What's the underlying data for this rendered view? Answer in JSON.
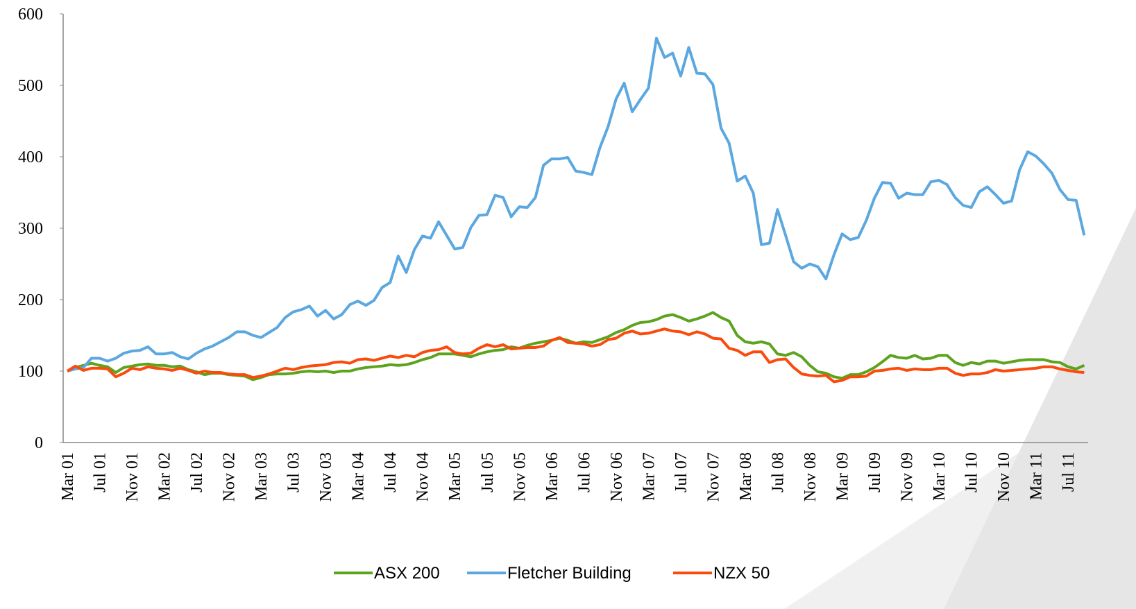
{
  "chart_data": {
    "type": "line",
    "categories": [
      "Mar 01",
      null,
      null,
      null,
      "Jul 01",
      null,
      null,
      null,
      "Nov 01",
      null,
      null,
      null,
      "Mar 02",
      null,
      null,
      null,
      "Jul 02",
      null,
      null,
      null,
      "Nov 02",
      null,
      null,
      null,
      "Mar 03",
      null,
      null,
      null,
      "Jul 03",
      null,
      null,
      null,
      "Nov 03",
      null,
      null,
      null,
      "Mar 04",
      null,
      null,
      null,
      "Jul 04",
      null,
      null,
      null,
      "Nov 04",
      null,
      null,
      null,
      "Mar 05",
      null,
      null,
      null,
      "Jul 05",
      null,
      null,
      null,
      "Nov 05",
      null,
      null,
      null,
      "Mar 06",
      null,
      null,
      null,
      "Jul 06",
      null,
      null,
      null,
      "Nov 06",
      null,
      null,
      null,
      "Mar 07",
      null,
      null,
      null,
      "Jul 07",
      null,
      null,
      null,
      "Nov 07",
      null,
      null,
      null,
      "Mar 08",
      null,
      null,
      null,
      "Jul 08",
      null,
      null,
      null,
      "Nov 08",
      null,
      null,
      null,
      "Mar 09",
      null,
      null,
      null,
      "Jul 09",
      null,
      null,
      null,
      "Nov 09",
      null,
      null,
      null,
      "Mar 10",
      null,
      null,
      null,
      "Jul 10",
      null,
      null,
      null,
      "Nov 10",
      null,
      null,
      null,
      "Mar 11",
      null,
      null,
      null,
      "Jul 11",
      null,
      null
    ],
    "series": [
      {
        "name": "ASX 200",
        "color": "#5da31e",
        "values": [
          100,
          105,
          108,
          111,
          108,
          106,
          98,
          105,
          107,
          109,
          110,
          108,
          108,
          106,
          107,
          102,
          99,
          95,
          97,
          97,
          95,
          94,
          93,
          88,
          91,
          95,
          96,
          96,
          97,
          99,
          100,
          99,
          100,
          98,
          100,
          100,
          103,
          105,
          106,
          107,
          109,
          108,
          109,
          112,
          116,
          119,
          124,
          124,
          124,
          122,
          120,
          124,
          127,
          129,
          130,
          134,
          132,
          136,
          139,
          141,
          143,
          146,
          143,
          139,
          141,
          140,
          144,
          148,
          154,
          158,
          164,
          168,
          169,
          172,
          177,
          179,
          175,
          170,
          173,
          177,
          182,
          175,
          170,
          150,
          141,
          139,
          141,
          138,
          124,
          122,
          126,
          120,
          108,
          99,
          97,
          92,
          90,
          95,
          95,
          99,
          105,
          113,
          122,
          119,
          118,
          122,
          117,
          118,
          122,
          122,
          112,
          108,
          112,
          110,
          114,
          114,
          111,
          113,
          115,
          116,
          116,
          116,
          113,
          112,
          106,
          103,
          108
        ]
      },
      {
        "name": "Fletcher Building",
        "color": "#5ba8e0",
        "values": [
          100,
          103,
          105,
          118,
          118,
          114,
          118,
          125,
          128,
          129,
          134,
          124,
          124,
          126,
          120,
          117,
          125,
          131,
          135,
          141,
          147,
          155,
          155,
          150,
          147,
          154,
          161,
          175,
          183,
          186,
          191,
          177,
          185,
          173,
          179,
          193,
          198,
          192,
          199,
          217,
          224,
          261,
          238,
          270,
          289,
          286,
          309,
          290,
          271,
          273,
          301,
          318,
          319,
          346,
          343,
          316,
          330,
          329,
          343,
          388,
          397,
          397,
          399,
          380,
          378,
          375,
          413,
          442,
          481,
          503,
          463,
          480,
          496,
          566,
          539,
          545,
          513,
          553,
          517,
          516,
          501,
          440,
          419,
          366,
          373,
          349,
          277,
          279,
          326,
          290,
          253,
          244,
          250,
          246,
          229,
          263,
          292,
          284,
          287,
          311,
          342,
          364,
          363,
          342,
          349,
          347,
          347,
          365,
          367,
          361,
          343,
          332,
          329,
          351,
          358,
          347,
          335,
          338,
          382,
          407,
          401,
          390,
          377,
          354,
          340,
          339,
          290
        ]
      },
      {
        "name": "NZX 50",
        "color": "#fa4b0c",
        "values": [
          100,
          107,
          101,
          104,
          104,
          103,
          92,
          97,
          104,
          102,
          106,
          104,
          103,
          101,
          104,
          101,
          97,
          100,
          98,
          98,
          96,
          95,
          95,
          91,
          93,
          96,
          100,
          104,
          102,
          105,
          107,
          108,
          109,
          112,
          113,
          111,
          116,
          117,
          115,
          118,
          121,
          119,
          122,
          120,
          126,
          129,
          130,
          134,
          126,
          124,
          125,
          132,
          137,
          134,
          137,
          131,
          132,
          133,
          133,
          135,
          143,
          147,
          140,
          139,
          138,
          135,
          137,
          144,
          146,
          153,
          156,
          152,
          153,
          156,
          159,
          156,
          155,
          151,
          155,
          152,
          146,
          145,
          132,
          129,
          122,
          127,
          127,
          112,
          116,
          117,
          105,
          96,
          94,
          93,
          94,
          85,
          87,
          92,
          92,
          93,
          100,
          101,
          103,
          104,
          101,
          103,
          102,
          102,
          104,
          104,
          97,
          94,
          96,
          96,
          98,
          102,
          100,
          101,
          102,
          103,
          104,
          106,
          106,
          103,
          101,
          99,
          98
        ]
      }
    ],
    "ylim": [
      0,
      600
    ],
    "yticks": [
      0,
      100,
      200,
      300,
      400,
      500,
      600
    ],
    "grid": false,
    "legend": "bottom"
  }
}
